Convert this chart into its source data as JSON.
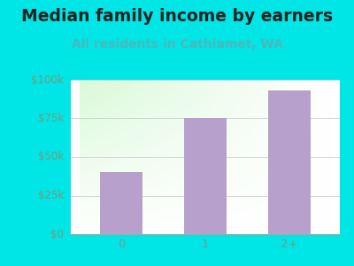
{
  "title": "Median family income by earners",
  "subtitle": "All residents in Cathlamet, WA",
  "categories": [
    "0",
    "1",
    "2+"
  ],
  "values": [
    40000,
    75000,
    93000
  ],
  "bar_color": "#b8a0cc",
  "title_fontsize": 13.5,
  "subtitle_fontsize": 10,
  "title_color": "#222222",
  "subtitle_color": "#4db8b8",
  "tick_label_color": "#7a9a7a",
  "background_color": "#00e5e5",
  "ylim": [
    0,
    100000
  ],
  "yticks": [
    0,
    25000,
    50000,
    75000,
    100000
  ],
  "ytick_labels": [
    "$0",
    "$25k",
    "$50k",
    "$75k",
    "$100k"
  ],
  "bar_width": 0.5,
  "figsize": [
    4.0,
    3.0
  ],
  "dpi": 100
}
